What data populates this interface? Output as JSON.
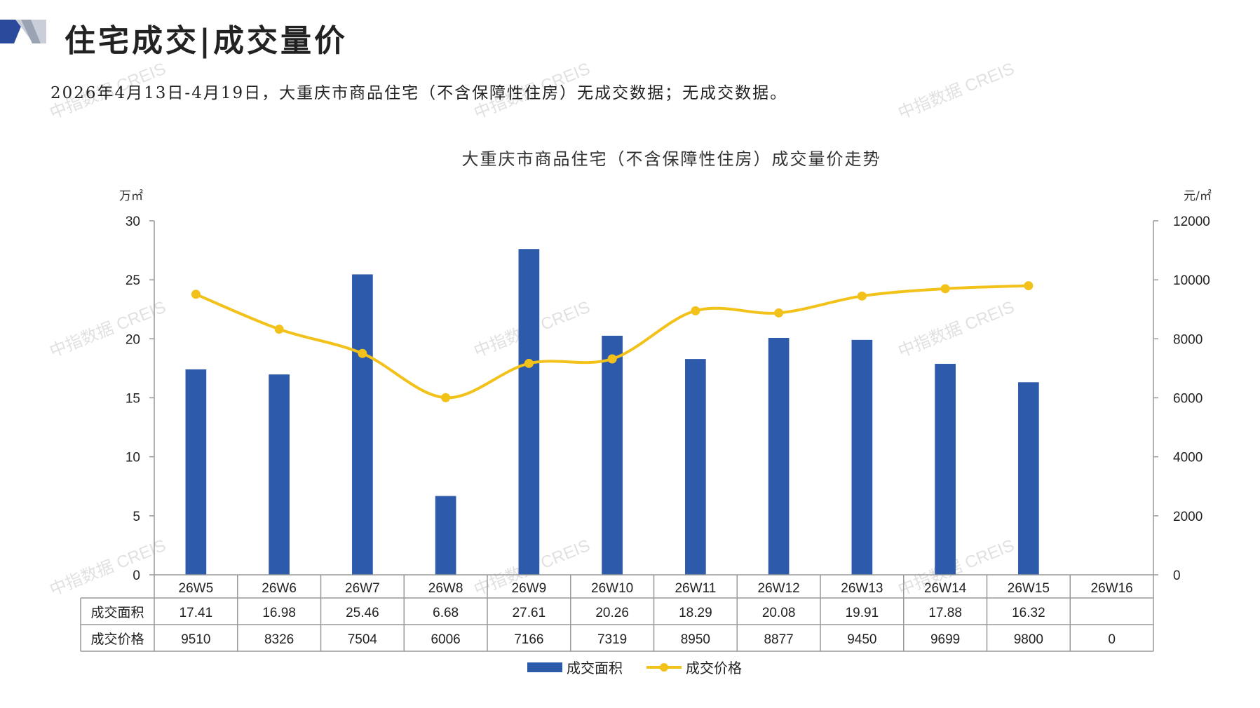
{
  "header": {
    "title": "住宅成交|成交量价",
    "summary": "2026年4月13日-4月19日，大重庆市商品住宅（不含保障性住房）无成交数据；无成交数据。"
  },
  "watermark": "中指数据 CREIS",
  "colors": {
    "bar": "#2E5AAC",
    "line": "#F2C21B",
    "logo_dark": "#2B4A9B",
    "logo_light": "#C9CED8"
  },
  "chart_data": {
    "type": "bar+line",
    "title": "大重庆市商品住宅（不含保障性住房）成交量价走势",
    "categories": [
      "26W5",
      "26W6",
      "26W7",
      "26W8",
      "26W9",
      "26W10",
      "26W11",
      "26W12",
      "26W13",
      "26W14",
      "26W15",
      "26W16"
    ],
    "series": [
      {
        "name": "成交面积",
        "type": "bar",
        "axis": "left",
        "values": [
          17.41,
          16.98,
          25.46,
          6.68,
          27.61,
          20.26,
          18.29,
          20.08,
          19.91,
          17.88,
          16.32,
          null
        ],
        "labels": [
          "17.41",
          "16.98",
          "25.46",
          "6.68",
          "27.61",
          "20.26",
          "18.29",
          "20.08",
          "19.91",
          "17.88",
          "16.32",
          ""
        ]
      },
      {
        "name": "成交价格",
        "type": "line",
        "axis": "right",
        "values": [
          9510,
          8326,
          7504,
          6006,
          7166,
          7319,
          8950,
          8877,
          9450,
          9699,
          9800,
          null
        ],
        "labels": [
          "9510",
          "8326",
          "7504",
          "6006",
          "7166",
          "7319",
          "8950",
          "8877",
          "9450",
          "9699",
          "9800",
          "0"
        ]
      }
    ],
    "y_left": {
      "unit": "万㎡",
      "min": 0,
      "max": 30,
      "ticks": [
        0,
        5,
        10,
        15,
        20,
        25,
        30
      ]
    },
    "y_right": {
      "unit": "元/㎡",
      "min": 0,
      "max": 12000,
      "ticks": [
        0,
        2000,
        4000,
        6000,
        8000,
        10000,
        12000
      ]
    },
    "grid": false,
    "legend": "bottom-center",
    "data_table": true
  }
}
